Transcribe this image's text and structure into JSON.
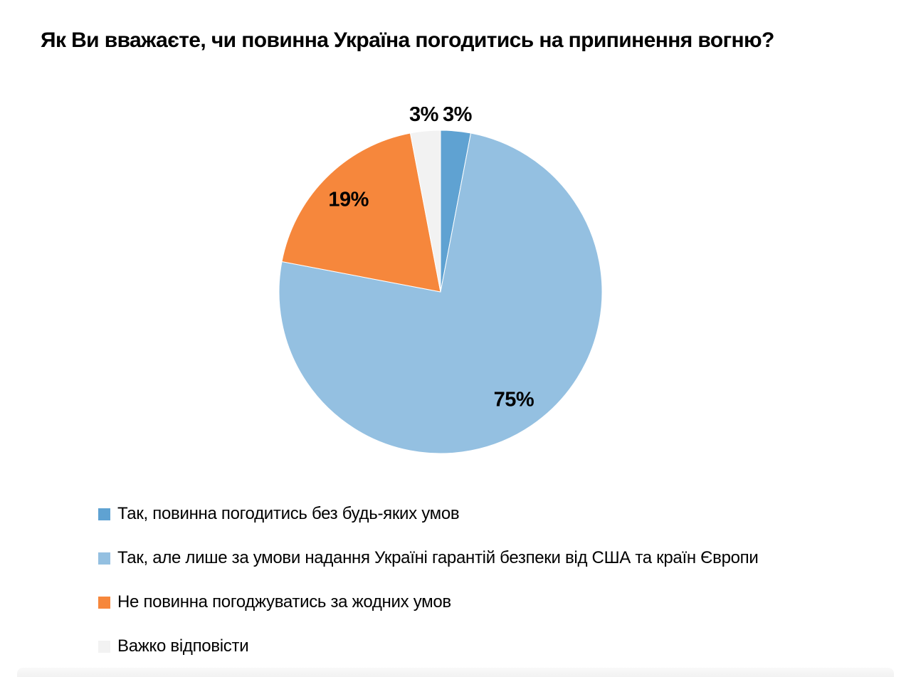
{
  "chart": {
    "title": "Як Ви вважаєте, чи повинна Україна погодитись на припинення вогню?"
  },
  "chart_data": {
    "type": "pie",
    "title": "Як Ви вважаєте, чи повинна Україна погодитись на припинення вогню?",
    "units": "percent",
    "start_angle_deg": 0,
    "direction": "clockwise",
    "legend_position": "bottom-left",
    "slices": [
      {
        "label": "Так, повинна погодитись без будь-яких умов",
        "value": 3,
        "display": "3%",
        "color": "#5FA2D2",
        "label_placement": "outside"
      },
      {
        "label": "Так, але лише за умови надання Україні гарантій безпеки від США та країн Європи",
        "value": 75,
        "display": "75%",
        "color": "#94C0E1",
        "label_placement": "inside"
      },
      {
        "label": "Не повинна погоджуватись за жодних умов",
        "value": 19,
        "display": "19%",
        "color": "#F6873C",
        "label_placement": "inside"
      },
      {
        "label": "Важко відповісти",
        "value": 3,
        "display": "3%",
        "color": "#F2F2F2",
        "label_placement": "outside"
      }
    ]
  }
}
